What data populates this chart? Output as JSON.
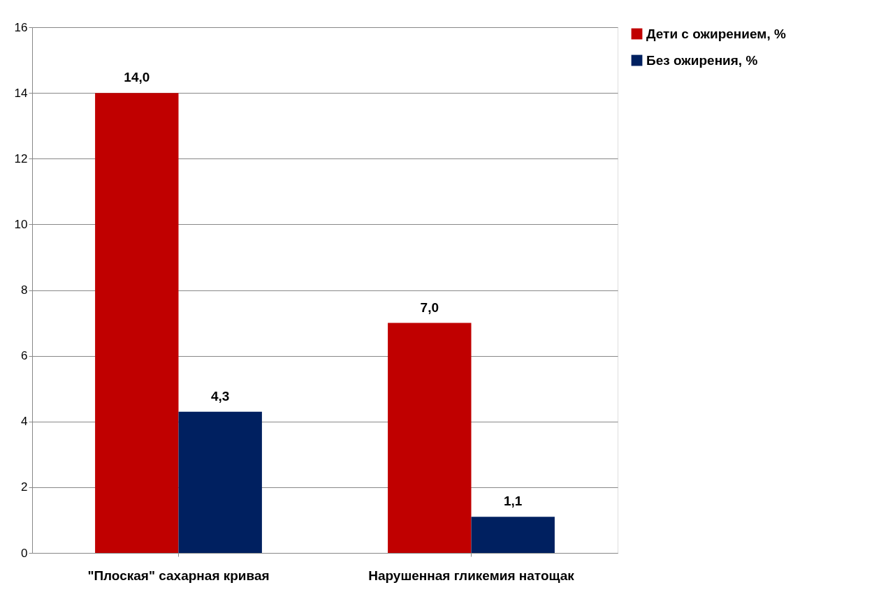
{
  "chart_data": {
    "type": "bar",
    "categories": [
      "\"Плоская\" сахарная кривая",
      "Нарушенная гликемия натощак"
    ],
    "series": [
      {
        "name": "Дети с ожирением, %",
        "color": "#c00000",
        "values": [
          14.0,
          7.0
        ],
        "value_labels": [
          "14,0",
          "7,0"
        ]
      },
      {
        "name": "Без ожирения, %",
        "color": "#002060",
        "values": [
          4.3,
          1.1
        ],
        "value_labels": [
          "4,3",
          "1,1"
        ]
      }
    ],
    "ylim": [
      0,
      16
    ],
    "yticks": [
      0,
      2,
      4,
      6,
      8,
      10,
      12,
      14,
      16
    ],
    "grid": "y",
    "legend": "right"
  }
}
